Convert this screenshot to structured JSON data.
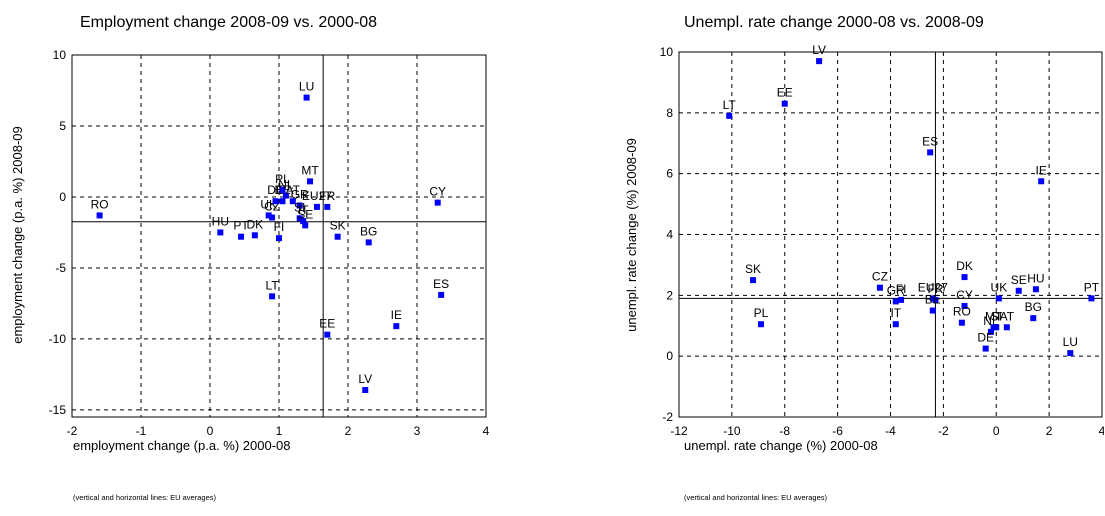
{
  "chart_data": [
    {
      "type": "scatter",
      "title": "Employment change 2008-09 vs. 2000-08",
      "xlabel": "employment change (p.a. %) 2000-08",
      "ylabel": "employment change (p.a. %) 2008-09",
      "note": "(vertical and horizontal lines: EU averages)",
      "xlim": [
        -2,
        4
      ],
      "ylim": [
        -15.5,
        10
      ],
      "xticks": [
        -2,
        -1,
        0,
        1,
        2,
        3,
        4
      ],
      "yticks": [
        -15,
        -10,
        -5,
        0,
        5,
        10
      ],
      "grid": true,
      "reference_lines": {
        "x": 1.64,
        "y": -1.75
      },
      "marker_color": "#0000ff",
      "points": [
        {
          "label": "RO",
          "x": -1.6,
          "y": -1.3
        },
        {
          "label": "HU",
          "x": 0.15,
          "y": -2.5
        },
        {
          "label": "PT",
          "x": 0.45,
          "y": -2.8
        },
        {
          "label": "DK",
          "x": 0.65,
          "y": -2.7
        },
        {
          "label": "LT",
          "x": 0.9,
          "y": -7.0
        },
        {
          "label": "FI",
          "x": 1.0,
          "y": -2.9
        },
        {
          "label": "UK",
          "x": 0.85,
          "y": -1.3
        },
        {
          "label": "CZ",
          "x": 0.9,
          "y": -1.45
        },
        {
          "label": "DE",
          "x": 0.95,
          "y": -0.3
        },
        {
          "label": "BE",
          "x": 1.05,
          "y": -0.3
        },
        {
          "label": "PL",
          "x": 1.05,
          "y": 0.5
        },
        {
          "label": "NL",
          "x": 1.1,
          "y": 0.1
        },
        {
          "label": "AT",
          "x": 1.2,
          "y": -0.3
        },
        {
          "label": "GR",
          "x": 1.3,
          "y": -0.6
        },
        {
          "label": "SI",
          "x": 1.3,
          "y": -1.5
        },
        {
          "label": "IT",
          "x": 1.35,
          "y": -1.7
        },
        {
          "label": "SE",
          "x": 1.38,
          "y": -2.0
        },
        {
          "label": "EU27",
          "x": 1.55,
          "y": -0.7
        },
        {
          "label": "LU",
          "x": 1.4,
          "y": 7.0
        },
        {
          "label": "MT",
          "x": 1.45,
          "y": 1.1
        },
        {
          "label": "FR",
          "x": 1.7,
          "y": -0.7
        },
        {
          "label": "SK",
          "x": 1.85,
          "y": -2.8
        },
        {
          "label": "BG",
          "x": 2.3,
          "y": -3.2
        },
        {
          "label": "CY",
          "x": 3.3,
          "y": -0.4
        },
        {
          "label": "ES",
          "x": 3.35,
          "y": -6.9
        },
        {
          "label": "IE",
          "x": 2.7,
          "y": -9.1
        },
        {
          "label": "EE",
          "x": 1.7,
          "y": -9.7
        },
        {
          "label": "LV",
          "x": 2.25,
          "y": -13.6
        }
      ]
    },
    {
      "type": "scatter",
      "title": "Unempl. rate change 2000-08 vs. 2008-09",
      "xlabel": "unempl. rate change (%) 2000-08",
      "ylabel": "unempl. rate change (%) 2008-09",
      "note": "(vertical and horizontal lines: EU averages)",
      "xlim": [
        -12,
        4
      ],
      "ylim": [
        -2,
        10
      ],
      "xticks": [
        -12,
        -10,
        -8,
        -6,
        -4,
        -2,
        0,
        2,
        4
      ],
      "yticks": [
        -2,
        0,
        2,
        4,
        6,
        8,
        10
      ],
      "grid": true,
      "reference_lines": {
        "x": -2.3,
        "y": 1.9
      },
      "marker_color": "#0000ff",
      "points": [
        {
          "label": "LT",
          "x": -10.1,
          "y": 7.9
        },
        {
          "label": "EE",
          "x": -8.0,
          "y": 8.3
        },
        {
          "label": "LV",
          "x": -6.7,
          "y": 9.7
        },
        {
          "label": "ES",
          "x": -2.5,
          "y": 6.7
        },
        {
          "label": "SK",
          "x": -9.2,
          "y": 2.5
        },
        {
          "label": "PL",
          "x": -8.9,
          "y": 1.05
        },
        {
          "label": "CZ",
          "x": -4.4,
          "y": 2.25
        },
        {
          "label": "GR",
          "x": -3.8,
          "y": 1.8
        },
        {
          "label": "FI",
          "x": -3.6,
          "y": 1.85
        },
        {
          "label": "IT",
          "x": -3.8,
          "y": 1.05
        },
        {
          "label": "EU27",
          "x": -2.4,
          "y": 1.9
        },
        {
          "label": "FR",
          "x": -2.3,
          "y": 1.85
        },
        {
          "label": "BE",
          "x": -2.4,
          "y": 1.5
        },
        {
          "label": "DK",
          "x": -1.2,
          "y": 2.6
        },
        {
          "label": "CY",
          "x": -1.2,
          "y": 1.65
        },
        {
          "label": "RO",
          "x": -1.3,
          "y": 1.1
        },
        {
          "label": "UK",
          "x": 0.1,
          "y": 1.9
        },
        {
          "label": "SE",
          "x": 0.85,
          "y": 2.15
        },
        {
          "label": "HU",
          "x": 1.5,
          "y": 2.2
        },
        {
          "label": "MT",
          "x": -0.1,
          "y": 0.95
        },
        {
          "label": "NL",
          "x": -0.2,
          "y": 0.8
        },
        {
          "label": "DE",
          "x": -0.4,
          "y": 0.25
        },
        {
          "label": "SI",
          "x": 0.0,
          "y": 0.95
        },
        {
          "label": "AT",
          "x": 0.4,
          "y": 0.95
        },
        {
          "label": "BG",
          "x": 1.4,
          "y": 1.25
        },
        {
          "label": "IE",
          "x": 1.7,
          "y": 5.75
        },
        {
          "label": "PT",
          "x": 3.6,
          "y": 1.9
        },
        {
          "label": "LU",
          "x": 2.8,
          "y": 0.1
        }
      ]
    }
  ]
}
